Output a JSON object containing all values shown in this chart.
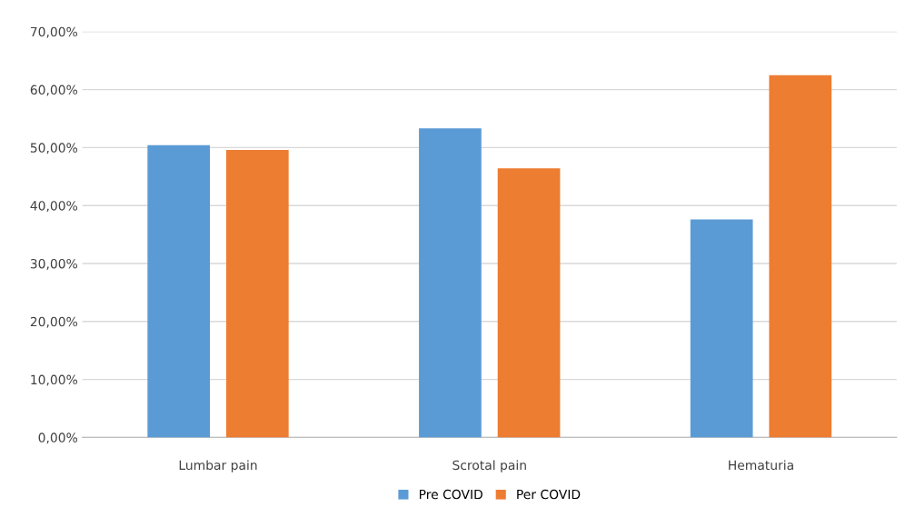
{
  "chart_data": {
    "type": "bar",
    "categories": [
      "Lumbar pain",
      "Scrotal pain",
      "Hematuria"
    ],
    "series": [
      {
        "name": "Pre COVID",
        "color": "#5b9bd5",
        "values": [
          50.4,
          53.3,
          37.6
        ]
      },
      {
        "name": "Per COVID",
        "color": "#ed7d31",
        "values": [
          49.6,
          46.4,
          62.5
        ]
      }
    ],
    "ylim": [
      0,
      70
    ],
    "yticks": [
      {
        "value": 0,
        "label": "0,00%"
      },
      {
        "value": 10,
        "label": "10,00%"
      },
      {
        "value": 20,
        "label": "20,00%"
      },
      {
        "value": 30,
        "label": "30,00%"
      },
      {
        "value": 40,
        "label": "40,00%"
      },
      {
        "value": 50,
        "label": "50,00%"
      },
      {
        "value": 60,
        "label": "60,00%"
      },
      {
        "value": 70,
        "label": "70,00%"
      }
    ],
    "grid": "y",
    "legend": "bottom"
  }
}
